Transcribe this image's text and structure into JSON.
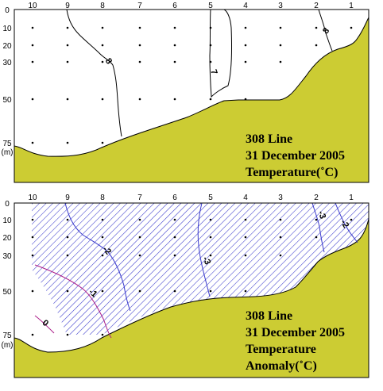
{
  "stations": [
    "10",
    "9",
    "8",
    "7",
    "6",
    "5",
    "4",
    "3",
    "2",
    "1"
  ],
  "depths": [
    "0",
    "10",
    "20",
    "30",
    "50",
    "75"
  ],
  "depth_unit": "(m)",
  "colors": {
    "terrain": "#cccc33",
    "hatch": "#3a3acc",
    "contour_temperature": "#000000",
    "contour_anomaly_cool": "#3a3acc",
    "contour_anomaly_warm": "#aa1a88"
  },
  "panels": [
    {
      "title_lines": [
        "308 Line",
        "31 December 2005",
        "Temperature(˚C)"
      ],
      "contour_labels": [
        "8",
        "7",
        "8"
      ]
    },
    {
      "title_lines": [
        "308 Line",
        "31 December 2005",
        "Temperature",
        "Anomaly(˚C)"
      ],
      "contour_labels": [
        "-2",
        "-1",
        "0",
        "-3",
        "-3",
        "-2"
      ]
    }
  ]
}
